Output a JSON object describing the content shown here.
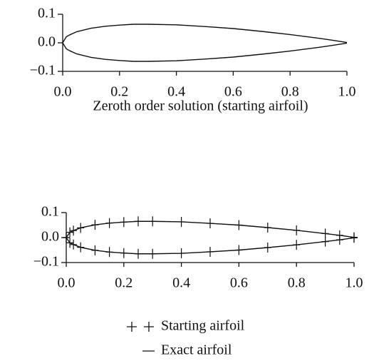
{
  "chart_data": [
    {
      "type": "line",
      "xlabel": "Zeroth order solution (starting airfoil)",
      "x": [
        0,
        0.0125,
        0.025,
        0.05,
        0.1,
        0.15,
        0.2,
        0.25,
        0.3,
        0.4,
        0.5,
        0.6,
        0.7,
        0.8,
        0.9,
        0.95,
        1.0
      ],
      "series": [
        {
          "color": "#111111",
          "values": [
            0,
            0.021,
            0.028,
            0.039,
            0.051,
            0.058,
            0.062,
            0.065,
            0.065,
            0.063,
            0.057,
            0.05,
            0.04,
            0.029,
            0.016,
            0.009,
            0.001
          ],
          "lower": [
            0,
            -0.021,
            -0.028,
            -0.039,
            -0.051,
            -0.058,
            -0.062,
            -0.065,
            -0.065,
            -0.063,
            -0.057,
            -0.05,
            -0.04,
            -0.029,
            -0.016,
            -0.009,
            -0.001
          ]
        }
      ],
      "xlim": [
        0,
        1.0
      ],
      "ylim": [
        -0.1,
        0.1
      ],
      "xticks": [
        {
          "value": 0,
          "label": "0.0"
        },
        {
          "value": 0.2,
          "label": "0.2"
        },
        {
          "value": 0.4,
          "label": "0.4"
        },
        {
          "value": 0.6,
          "label": "0.6"
        },
        {
          "value": 0.8,
          "label": "0.8"
        },
        {
          "value": 1.0,
          "label": "1.0"
        }
      ],
      "yticks": [
        {
          "value": 0.1,
          "label": "0.1"
        },
        {
          "value": 0,
          "label": "0.0"
        },
        {
          "value": -0.1,
          "label": "−0.1"
        }
      ]
    },
    {
      "type": "line",
      "x": [
        0,
        0.0125,
        0.025,
        0.05,
        0.1,
        0.15,
        0.2,
        0.25,
        0.3,
        0.4,
        0.5,
        0.6,
        0.7,
        0.8,
        0.9,
        0.95,
        1.0
      ],
      "series": [
        {
          "name": "Starting airfoil",
          "marker": "+",
          "color": "#111111",
          "values": [
            0,
            0.021,
            0.028,
            0.039,
            0.051,
            0.058,
            0.062,
            0.065,
            0.065,
            0.063,
            0.057,
            0.05,
            0.04,
            0.029,
            0.016,
            0.009,
            0.001
          ],
          "lower": [
            0,
            -0.021,
            -0.028,
            -0.039,
            -0.051,
            -0.058,
            -0.062,
            -0.065,
            -0.065,
            -0.063,
            -0.057,
            -0.05,
            -0.04,
            -0.029,
            -0.016,
            -0.009,
            -0.001
          ]
        },
        {
          "name": "Exact airfoil",
          "marker": "line",
          "color": "#111111",
          "values": [
            0,
            0.021,
            0.028,
            0.039,
            0.051,
            0.058,
            0.062,
            0.065,
            0.065,
            0.063,
            0.057,
            0.05,
            0.04,
            0.029,
            0.016,
            0.009,
            0.001
          ],
          "lower": [
            0,
            -0.021,
            -0.028,
            -0.039,
            -0.051,
            -0.058,
            -0.062,
            -0.065,
            -0.065,
            -0.063,
            -0.057,
            -0.05,
            -0.04,
            -0.029,
            -0.016,
            -0.009,
            -0.001
          ]
        }
      ],
      "xlim": [
        0,
        1.0
      ],
      "ylim": [
        -0.1,
        0.1
      ],
      "xticks": [
        {
          "value": 0,
          "label": "0.0"
        },
        {
          "value": 0.2,
          "label": "0.2"
        },
        {
          "value": 0.4,
          "label": "0.4"
        },
        {
          "value": 0.6,
          "label": "0.6"
        },
        {
          "value": 0.8,
          "label": "0.8"
        },
        {
          "value": 1.0,
          "label": "1.0"
        }
      ],
      "yticks": [
        {
          "value": 0.1,
          "label": "0.1"
        },
        {
          "value": 0,
          "label": "0.0"
        },
        {
          "value": -0.1,
          "label": "−0.1"
        }
      ],
      "legend": "bottom-center"
    }
  ]
}
